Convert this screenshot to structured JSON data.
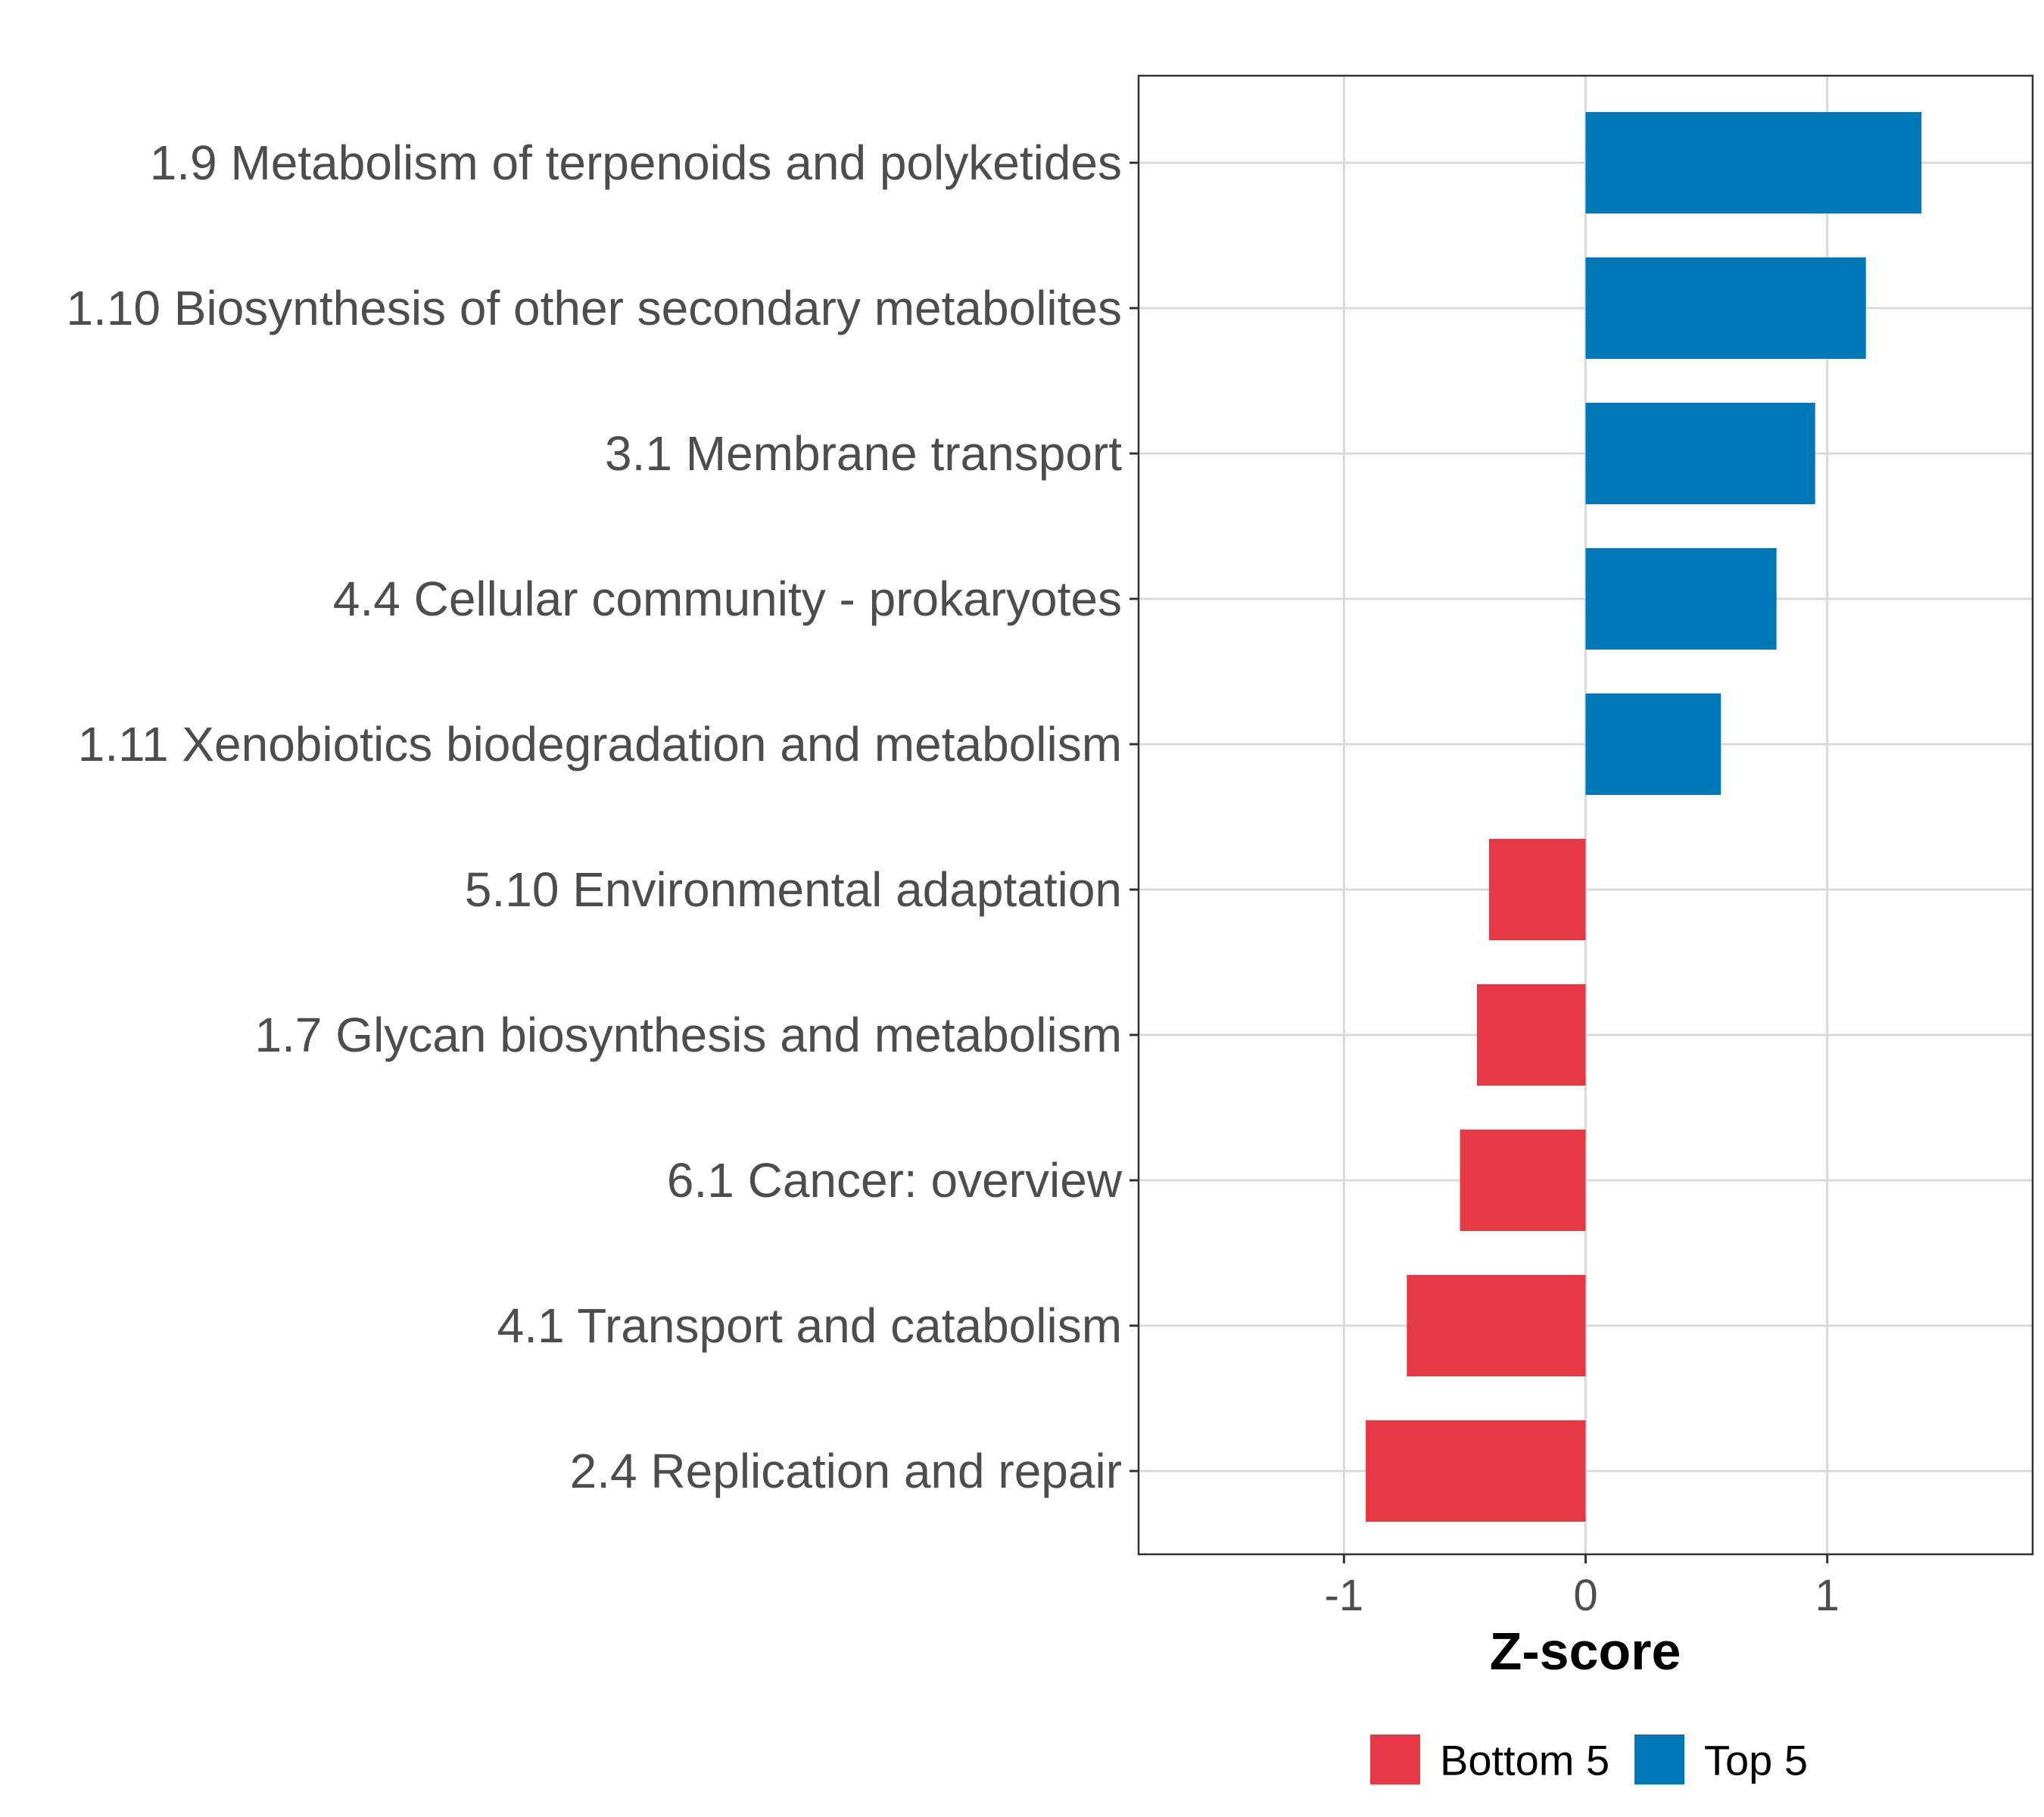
{
  "chart_data": {
    "type": "bar",
    "orientation": "horizontal",
    "title": "",
    "xlabel": "Z-score",
    "ylabel": "",
    "xlim": [
      -1.85,
      1.85
    ],
    "xticks": [
      -1,
      0,
      1
    ],
    "xtick_labels": [
      "-1",
      "0",
      "1"
    ],
    "grid": true,
    "legend_position": "bottom",
    "categories": [
      "1.9 Metabolism of terpenoids and polyketides",
      "1.10 Biosynthesis of other secondary metabolites",
      "3.1 Membrane transport",
      "4.4 Cellular community - prokaryotes",
      "1.11 Xenobiotics biodegradation and metabolism",
      "5.10 Environmental adaptation",
      "1.7 Glycan biosynthesis and metabolism",
      "6.1 Cancer: overview",
      "4.1 Transport and catabolism",
      "2.4 Replication and repair"
    ],
    "values": [
      1.39,
      1.16,
      0.95,
      0.79,
      0.56,
      -0.4,
      -0.45,
      -0.52,
      -0.74,
      -0.91
    ],
    "groups": [
      "Top 5",
      "Top 5",
      "Top 5",
      "Top 5",
      "Top 5",
      "Bottom 5",
      "Bottom 5",
      "Bottom 5",
      "Bottom 5",
      "Bottom 5"
    ],
    "legend": [
      {
        "name": "Bottom 5",
        "color": "#e63946"
      },
      {
        "name": "Top 5",
        "color": "#0077b6"
      }
    ]
  }
}
